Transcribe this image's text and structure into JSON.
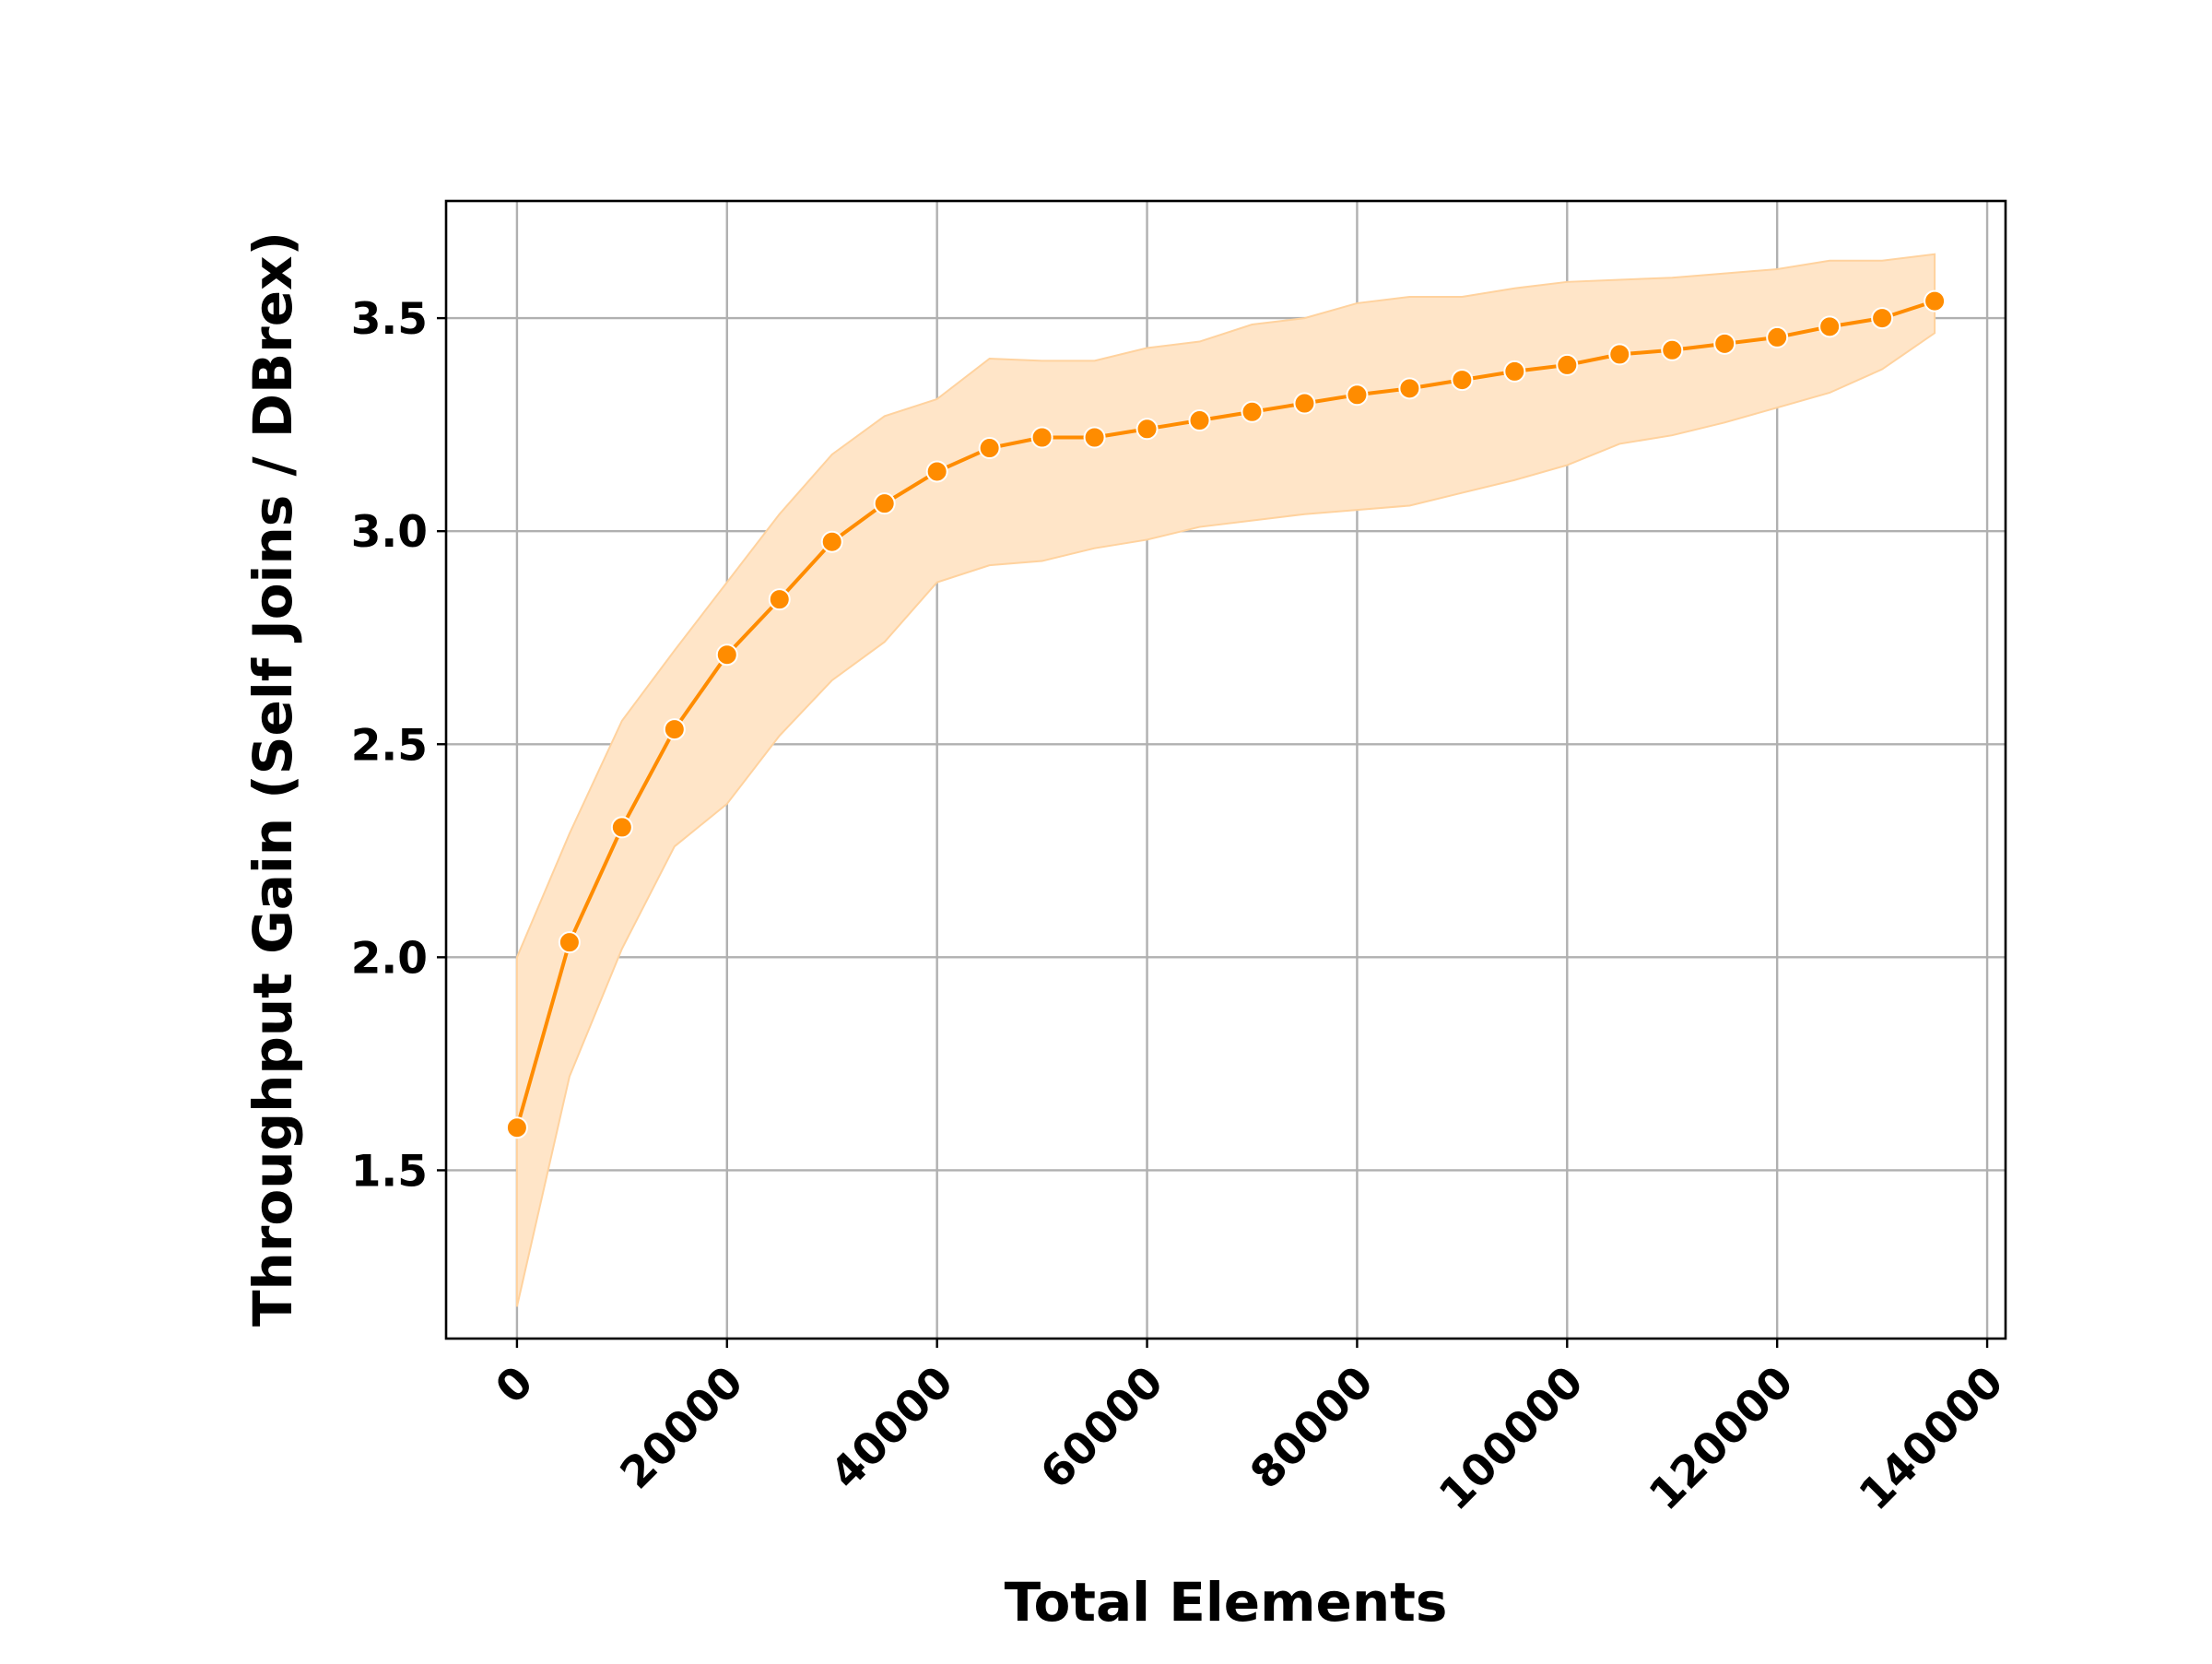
{
  "chart_data": {
    "type": "line",
    "title": "",
    "xlabel": "Total Elements",
    "ylabel": "Throughput Gain (Self Joins / DBrex)",
    "xlim": [
      -6750,
      141750
    ],
    "ylim": [
      1.105,
      3.775
    ],
    "x_ticks": [
      0,
      20000,
      40000,
      60000,
      80000,
      100000,
      120000,
      140000
    ],
    "x_tick_labels": [
      "0",
      "20000",
      "40000",
      "60000",
      "80000",
      "100000",
      "120000",
      "140000"
    ],
    "y_ticks": [
      1.5,
      2.0,
      2.5,
      3.0,
      3.5
    ],
    "y_tick_labels": [
      "1.5",
      "2.0",
      "2.5",
      "3.0",
      "3.5"
    ],
    "x_tick_rotation_deg": 45,
    "grid": true,
    "legend": "none",
    "colors": {
      "line": "#ff8c00",
      "band": "#ffe5c8",
      "band_edge": "#ffd29e",
      "marker_edge": "#ffffff",
      "grid": "#b0b0b0"
    },
    "series": [
      {
        "x": [
          0,
          5000,
          10000,
          15000,
          20000,
          25000,
          30000,
          35000,
          40000,
          45000,
          50000,
          55000,
          60000,
          65000,
          70000,
          75000,
          80000,
          85000,
          90000,
          95000,
          100000,
          105000,
          110000,
          115000,
          120000,
          125000,
          130000,
          135000
        ],
        "y": [
          1.6,
          2.035,
          2.305,
          2.535,
          2.71,
          2.84,
          2.975,
          3.065,
          3.14,
          3.195,
          3.22,
          3.22,
          3.24,
          3.26,
          3.28,
          3.3,
          3.32,
          3.335,
          3.355,
          3.375,
          3.39,
          3.415,
          3.425,
          3.44,
          3.455,
          3.48,
          3.5,
          3.54
        ],
        "lower": [
          1.18,
          1.72,
          2.02,
          2.26,
          2.36,
          2.52,
          2.65,
          2.74,
          2.88,
          2.92,
          2.93,
          2.96,
          2.98,
          3.01,
          3.025,
          3.04,
          3.05,
          3.06,
          3.09,
          3.12,
          3.155,
          3.205,
          3.225,
          3.255,
          3.29,
          3.325,
          3.38,
          3.465
        ],
        "upper": [
          2.0,
          2.29,
          2.555,
          2.72,
          2.88,
          3.04,
          3.18,
          3.27,
          3.31,
          3.405,
          3.4,
          3.4,
          3.43,
          3.445,
          3.485,
          3.5,
          3.535,
          3.55,
          3.55,
          3.57,
          3.585,
          3.59,
          3.595,
          3.605,
          3.615,
          3.635,
          3.635,
          3.65
        ]
      }
    ]
  }
}
